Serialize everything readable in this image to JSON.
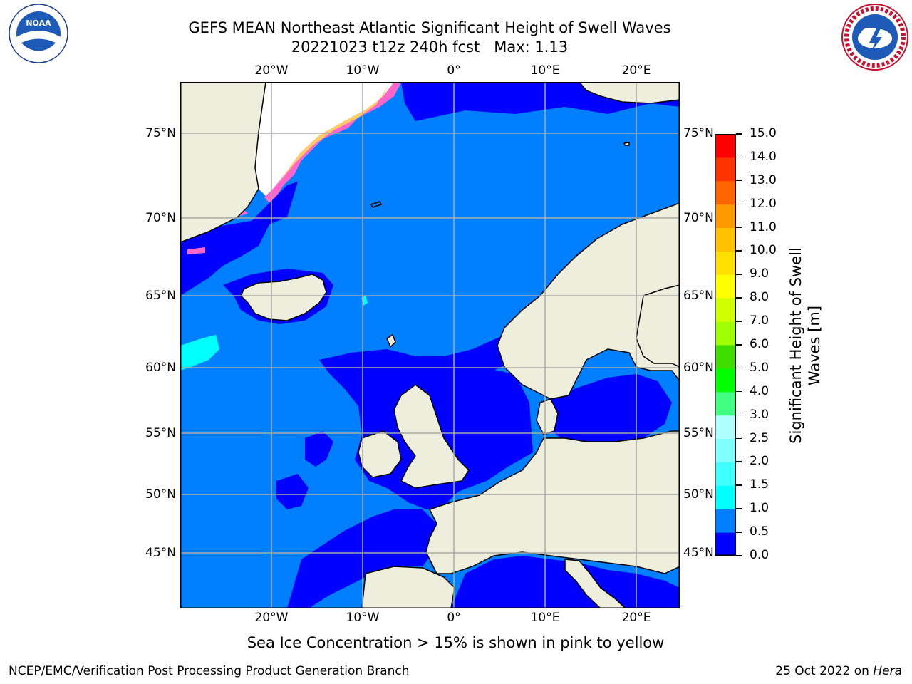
{
  "title": {
    "line1": "GEFS MEAN Northeast Atlantic Significant Height of Swell Waves",
    "line2": "20221023 t12z 240h fcst   Max: 1.13"
  },
  "logos": {
    "left": "noaa-logo",
    "right": "nws-logo"
  },
  "map": {
    "lon_range": [
      -30,
      25
    ],
    "lat_range": [
      41,
      78
    ],
    "projection": "mercator",
    "lon_ticks": [
      {
        "value": -20,
        "label": "20°W"
      },
      {
        "value": -10,
        "label": "10°W"
      },
      {
        "value": 0,
        "label": "0°"
      },
      {
        "value": 10,
        "label": "10°E"
      },
      {
        "value": 20,
        "label": "20°E"
      }
    ],
    "lat_ticks": [
      {
        "value": 75,
        "label": "75°N"
      },
      {
        "value": 70,
        "label": "70°N"
      },
      {
        "value": 65,
        "label": "65°N"
      },
      {
        "value": 60,
        "label": "60°N"
      },
      {
        "value": 55,
        "label": "55°N"
      },
      {
        "value": 50,
        "label": "50°N"
      },
      {
        "value": 45,
        "label": "45°N"
      }
    ],
    "colors": {
      "ocean_low": "#0000ff",
      "ocean_mid": "#0080ff",
      "ocean_high": "#00ffff",
      "land": "#eeeedd",
      "gridline": "#aaaaaa",
      "coast": "#000000"
    }
  },
  "colorbar": {
    "label": "Significant Height of Swell Waves [m]",
    "ticks": [
      "0.0",
      "0.5",
      "1.0",
      "1.5",
      "2.0",
      "2.5",
      "3.0",
      "4.0",
      "5.0",
      "6.0",
      "7.0",
      "8.0",
      "9.0",
      "10.0",
      "11.0",
      "12.0",
      "13.0",
      "14.0",
      "15.0"
    ],
    "colors": [
      "#0000ff",
      "#0080ff",
      "#00ffff",
      "#40ffff",
      "#80ffff",
      "#b0ffff",
      "#40ff80",
      "#00ff00",
      "#40dd00",
      "#a0ff00",
      "#d0ff00",
      "#ffff00",
      "#ffe000",
      "#ffc000",
      "#ff9900",
      "#ff6600",
      "#ff3300",
      "#ff0000"
    ]
  },
  "annotation": "Sea Ice Concentration > 15% is shown in pink to yellow",
  "footer": {
    "left": "NCEP/EMC/Verification Post Processing Product Generation Branch",
    "date": "25 Oct 2022 on ",
    "host": "Hera"
  }
}
